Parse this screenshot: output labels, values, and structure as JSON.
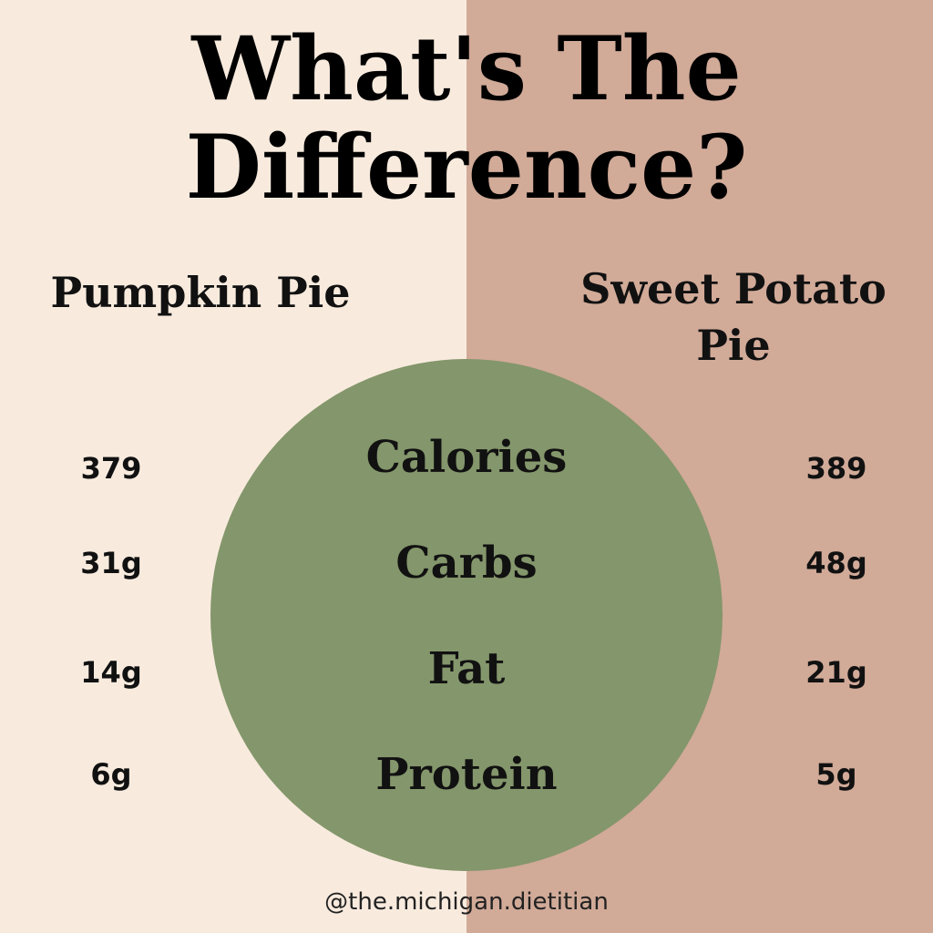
{
  "colors": {
    "left_bg": "#f8ebde",
    "right_bg": "#d1aa98",
    "circle": "#84966b",
    "text": "#111111"
  },
  "title": {
    "line1": "What's The",
    "line2": "Difference?"
  },
  "columns": {
    "left": "Pumpkin Pie",
    "right_line1": "Sweet Potato",
    "right_line2": "Pie"
  },
  "rows": [
    {
      "metric": "Calories",
      "left": "379",
      "right": "389"
    },
    {
      "metric": "Carbs",
      "left": "31g",
      "right": "48g"
    },
    {
      "metric": "Fat",
      "left": "14g",
      "right": "21g"
    },
    {
      "metric": "Protein",
      "left": "6g",
      "right": "5g"
    }
  ],
  "footer": {
    "handle": "@the.michigan.dietitian"
  }
}
